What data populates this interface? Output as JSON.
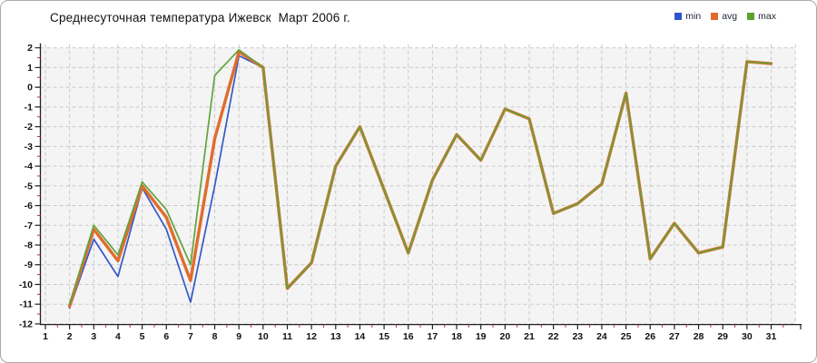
{
  "title": "Среднесуточная температура Ижевск  Март 2006 г.",
  "legend": {
    "position": "top-right",
    "items": [
      {
        "label": "min",
        "color": "#2f55cd"
      },
      {
        "label": "avg",
        "color": "#e2692c"
      },
      {
        "label": "max",
        "color": "#58a32f"
      }
    ]
  },
  "chart_data": {
    "type": "line",
    "title": "Среднесуточная температура Ижевск  Март 2006 г.",
    "xlabel": "",
    "ylabel": "",
    "x": [
      1,
      2,
      3,
      4,
      5,
      6,
      7,
      8,
      9,
      10,
      11,
      12,
      13,
      14,
      15,
      16,
      17,
      18,
      19,
      20,
      21,
      22,
      23,
      24,
      25,
      26,
      27,
      28,
      29,
      30,
      31
    ],
    "xlim": [
      1,
      32
    ],
    "ylim": [
      -12,
      2
    ],
    "y_tick_step": 1,
    "minor_tick_step": 0.5,
    "grid": "dashed",
    "legend_position": "top-right",
    "series": [
      {
        "name": "min",
        "color": "#3558c8",
        "width": 1.7,
        "values": [
          null,
          -11.2,
          -7.7,
          -9.6,
          -5.1,
          -7.2,
          -10.9,
          -5.0,
          1.6,
          1.0,
          -10.2,
          -8.9,
          -4.0,
          -2.0,
          -5.2,
          -8.4,
          -4.7,
          -2.4,
          -3.7,
          -1.1,
          -1.6,
          -6.4,
          -5.9,
          -4.9,
          -0.3,
          -8.7,
          -6.9,
          -8.4,
          -8.1,
          1.3,
          1.2
        ]
      },
      {
        "name": "avg",
        "color": "#e06c2e",
        "width": 3.4,
        "values": [
          null,
          -11.1,
          -7.2,
          -8.8,
          -5.0,
          -6.6,
          -9.8,
          -2.6,
          1.8,
          1.0,
          -10.2,
          -8.9,
          -4.0,
          -2.0,
          -5.2,
          -8.4,
          -4.7,
          -2.4,
          -3.7,
          -1.1,
          -1.6,
          -6.4,
          -5.9,
          -4.9,
          -0.3,
          -8.7,
          -6.9,
          -8.4,
          -8.1,
          1.3,
          1.2
        ]
      },
      {
        "name": "max",
        "color": "#61a33c",
        "width": 1.7,
        "values": [
          null,
          -11.0,
          -7.0,
          -8.5,
          -4.8,
          -6.2,
          -9.0,
          0.6,
          1.9,
          1.0,
          -10.2,
          -8.9,
          -4.0,
          -2.0,
          -5.2,
          -8.4,
          -4.7,
          -2.4,
          -3.7,
          -1.1,
          -1.6,
          -6.4,
          -5.9,
          -4.9,
          -0.3,
          -8.7,
          -6.9,
          -8.4,
          -8.1,
          1.3,
          1.2
        ]
      }
    ]
  },
  "style": {
    "plot_bg": "#f4f4f4",
    "grid_color": "#c9c9c9",
    "axis_color": "#222222",
    "minor_tick_color": "#c03030",
    "tick_label_color": "#111111"
  }
}
